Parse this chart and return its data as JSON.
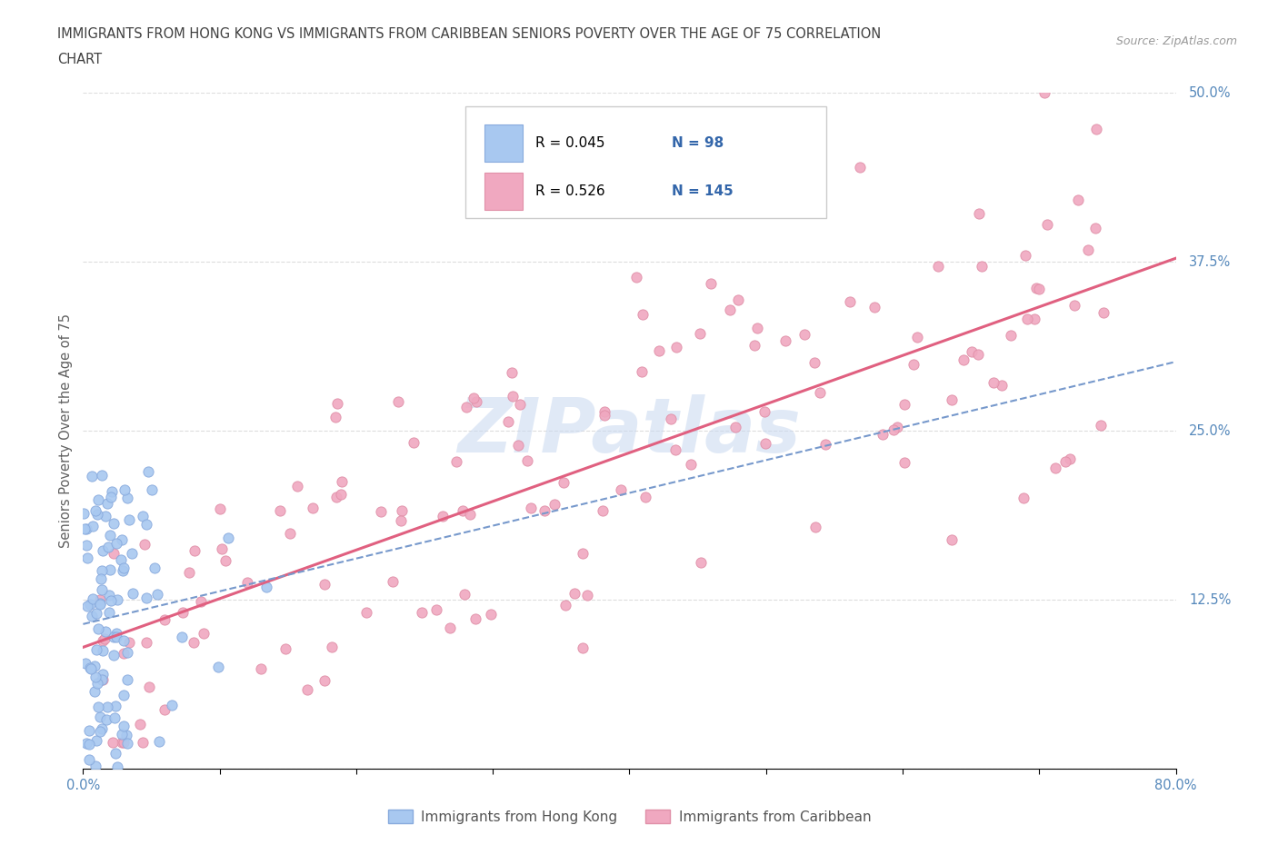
{
  "title_line1": "IMMIGRANTS FROM HONG KONG VS IMMIGRANTS FROM CARIBBEAN SENIORS POVERTY OVER THE AGE OF 75 CORRELATION",
  "title_line2": "CHART",
  "source_text": "Source: ZipAtlas.com",
  "ylabel": "Seniors Poverty Over the Age of 75",
  "xlim": [
    0.0,
    0.8
  ],
  "ylim": [
    0.0,
    0.5
  ],
  "xticks": [
    0.0,
    0.1,
    0.2,
    0.3,
    0.4,
    0.5,
    0.6,
    0.7,
    0.8
  ],
  "yticks": [
    0.0,
    0.125,
    0.25,
    0.375,
    0.5
  ],
  "yticklabels": [
    "",
    "12.5%",
    "25.0%",
    "37.5%",
    "50.0%"
  ],
  "hk_color": "#a8c8f0",
  "caribbean_color": "#f0a8c0",
  "hk_line_color": "#7799cc",
  "caribbean_line_color": "#e06080",
  "hk_R": 0.045,
  "hk_N": 98,
  "caribbean_R": 0.526,
  "caribbean_N": 145,
  "watermark_text": "ZIPatlas",
  "watermark_color": "#c8d8f0",
  "legend_label_hk": "Immigrants from Hong Kong",
  "legend_label_caribbean": "Immigrants from Caribbean",
  "grid_color": "#dddddd",
  "title_color": "#404040",
  "axis_label_color": "#5588bb",
  "annotation_color": "#3366aa"
}
